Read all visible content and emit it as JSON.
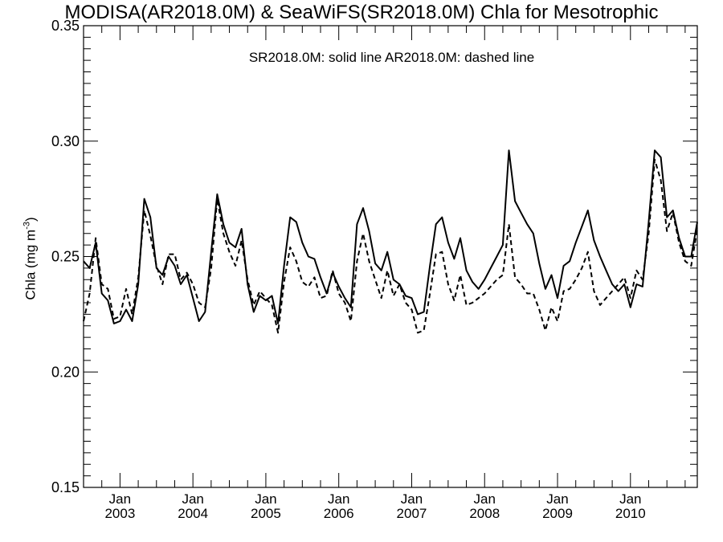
{
  "chart_data": {
    "type": "line",
    "title": "MODISA(AR2018.0M) & SeaWiFS(SR2018.0M)  Chla for Mesotrophic",
    "annotation": "SR2018.0M: solid line   AR2018.0M: dashed line",
    "ylabel": {
      "main": "Chla (mg m",
      "sup": "-3",
      "close": ")"
    },
    "ylim": [
      0.15,
      0.35
    ],
    "yticks": [
      "0.15",
      "0.20",
      "0.25",
      "0.30",
      "0.35"
    ],
    "xlim": [
      "2002-07",
      "2010-12"
    ],
    "xticks": [
      {
        "top": "Jan",
        "bottom": "2003",
        "x": "2003-01"
      },
      {
        "top": "Jan",
        "bottom": "2004",
        "x": "2004-01"
      },
      {
        "top": "Jan",
        "bottom": "2005",
        "x": "2005-01"
      },
      {
        "top": "Jan",
        "bottom": "2006",
        "x": "2006-01"
      },
      {
        "top": "Jan",
        "bottom": "2007",
        "x": "2007-01"
      },
      {
        "top": "Jan",
        "bottom": "2008",
        "x": "2008-01"
      },
      {
        "top": "Jan",
        "bottom": "2009",
        "x": "2009-01"
      },
      {
        "top": "Jan",
        "bottom": "2010",
        "x": "2010-01"
      }
    ],
    "grid": false,
    "series": [
      {
        "name": "SR2018.0M",
        "style": "solid",
        "points": [
          [
            "2002-07",
            0.248
          ],
          [
            "2002-08",
            0.245
          ],
          [
            "2002-09",
            0.256
          ],
          [
            "2002-10",
            0.234
          ],
          [
            "2002-11",
            0.231
          ],
          [
            "2002-12",
            0.221
          ],
          [
            "2003-01",
            0.222
          ],
          [
            "2003-02",
            0.227
          ],
          [
            "2003-03",
            0.222
          ],
          [
            "2003-04",
            0.238
          ],
          [
            "2003-05",
            0.275
          ],
          [
            "2003-06",
            0.267
          ],
          [
            "2003-07",
            0.245
          ],
          [
            "2003-08",
            0.242
          ],
          [
            "2003-09",
            0.25
          ],
          [
            "2003-10",
            0.246
          ],
          [
            "2003-11",
            0.238
          ],
          [
            "2003-12",
            0.242
          ],
          [
            "2004-01",
            0.232
          ],
          [
            "2004-02",
            0.222
          ],
          [
            "2004-03",
            0.226
          ],
          [
            "2004-04",
            0.252
          ],
          [
            "2004-05",
            0.277
          ],
          [
            "2004-06",
            0.264
          ],
          [
            "2004-07",
            0.256
          ],
          [
            "2004-08",
            0.254
          ],
          [
            "2004-09",
            0.262
          ],
          [
            "2004-10",
            0.238
          ],
          [
            "2004-11",
            0.226
          ],
          [
            "2004-12",
            0.233
          ],
          [
            "2005-01",
            0.231
          ],
          [
            "2005-02",
            0.233
          ],
          [
            "2005-03",
            0.221
          ],
          [
            "2005-04",
            0.246
          ],
          [
            "2005-05",
            0.267
          ],
          [
            "2005-06",
            0.265
          ],
          [
            "2005-07",
            0.256
          ],
          [
            "2005-08",
            0.25
          ],
          [
            "2005-09",
            0.249
          ],
          [
            "2005-10",
            0.241
          ],
          [
            "2005-11",
            0.234
          ],
          [
            "2005-12",
            0.243
          ],
          [
            "2006-01",
            0.237
          ],
          [
            "2006-02",
            0.232
          ],
          [
            "2006-03",
            0.228
          ],
          [
            "2006-04",
            0.264
          ],
          [
            "2006-05",
            0.271
          ],
          [
            "2006-06",
            0.261
          ],
          [
            "2006-07",
            0.247
          ],
          [
            "2006-08",
            0.244
          ],
          [
            "2006-09",
            0.252
          ],
          [
            "2006-10",
            0.24
          ],
          [
            "2006-11",
            0.238
          ],
          [
            "2006-12",
            0.233
          ],
          [
            "2007-01",
            0.232
          ],
          [
            "2007-02",
            0.225
          ],
          [
            "2007-03",
            0.226
          ],
          [
            "2007-04",
            0.246
          ],
          [
            "2007-05",
            0.264
          ],
          [
            "2007-06",
            0.267
          ],
          [
            "2007-07",
            0.256
          ],
          [
            "2007-08",
            0.249
          ],
          [
            "2007-09",
            0.258
          ],
          [
            "2007-10",
            0.244
          ],
          [
            "2007-11",
            0.239
          ],
          [
            "2007-12",
            0.236
          ],
          [
            "2008-01",
            0.24
          ],
          [
            "2008-02",
            0.245
          ],
          [
            "2008-03",
            0.25
          ],
          [
            "2008-04",
            0.255
          ],
          [
            "2008-05",
            0.296
          ],
          [
            "2008-06",
            0.274
          ],
          [
            "2008-07",
            0.269
          ],
          [
            "2008-08",
            0.264
          ],
          [
            "2008-09",
            0.26
          ],
          [
            "2008-10",
            0.247
          ],
          [
            "2008-11",
            0.236
          ],
          [
            "2008-12",
            0.242
          ],
          [
            "2009-01",
            0.232
          ],
          [
            "2009-02",
            0.246
          ],
          [
            "2009-03",
            0.248
          ],
          [
            "2009-04",
            0.256
          ],
          [
            "2009-05",
            0.263
          ],
          [
            "2009-06",
            0.27
          ],
          [
            "2009-07",
            0.257
          ],
          [
            "2009-08",
            0.25
          ],
          [
            "2009-09",
            0.244
          ],
          [
            "2009-10",
            0.238
          ],
          [
            "2009-11",
            0.235
          ],
          [
            "2009-12",
            0.238
          ],
          [
            "2010-01",
            0.228
          ],
          [
            "2010-02",
            0.238
          ],
          [
            "2010-03",
            0.237
          ],
          [
            "2010-04",
            0.265
          ],
          [
            "2010-05",
            0.296
          ],
          [
            "2010-06",
            0.293
          ],
          [
            "2010-07",
            0.267
          ],
          [
            "2010-08",
            0.27
          ],
          [
            "2010-09",
            0.258
          ],
          [
            "2010-10",
            0.25
          ],
          [
            "2010-11",
            0.25
          ],
          [
            "2010-12",
            0.265
          ]
        ]
      },
      {
        "name": "AR2018.0M",
        "style": "dashed",
        "points": [
          [
            "2002-07",
            0.222
          ],
          [
            "2002-08",
            0.234
          ],
          [
            "2002-09",
            0.258
          ],
          [
            "2002-10",
            0.238
          ],
          [
            "2002-11",
            0.236
          ],
          [
            "2002-12",
            0.223
          ],
          [
            "2003-01",
            0.224
          ],
          [
            "2003-02",
            0.236
          ],
          [
            "2003-03",
            0.225
          ],
          [
            "2003-04",
            0.241
          ],
          [
            "2003-05",
            0.27
          ],
          [
            "2003-06",
            0.259
          ],
          [
            "2003-07",
            0.246
          ],
          [
            "2003-08",
            0.238
          ],
          [
            "2003-09",
            0.251
          ],
          [
            "2003-10",
            0.251
          ],
          [
            "2003-11",
            0.24
          ],
          [
            "2003-12",
            0.243
          ],
          [
            "2004-01",
            0.238
          ],
          [
            "2004-02",
            0.23
          ],
          [
            "2004-03",
            0.228
          ],
          [
            "2004-04",
            0.245
          ],
          [
            "2004-05",
            0.275
          ],
          [
            "2004-06",
            0.26
          ],
          [
            "2004-07",
            0.252
          ],
          [
            "2004-08",
            0.246
          ],
          [
            "2004-09",
            0.257
          ],
          [
            "2004-10",
            0.24
          ],
          [
            "2004-11",
            0.229
          ],
          [
            "2004-12",
            0.235
          ],
          [
            "2005-01",
            0.232
          ],
          [
            "2005-02",
            0.229
          ],
          [
            "2005-03",
            0.217
          ],
          [
            "2005-04",
            0.239
          ],
          [
            "2005-05",
            0.254
          ],
          [
            "2005-06",
            0.248
          ],
          [
            "2005-07",
            0.239
          ],
          [
            "2005-08",
            0.237
          ],
          [
            "2005-09",
            0.241
          ],
          [
            "2005-10",
            0.232
          ],
          [
            "2005-11",
            0.233
          ],
          [
            "2005-12",
            0.244
          ],
          [
            "2006-01",
            0.234
          ],
          [
            "2006-02",
            0.23
          ],
          [
            "2006-03",
            0.222
          ],
          [
            "2006-04",
            0.248
          ],
          [
            "2006-05",
            0.26
          ],
          [
            "2006-06",
            0.248
          ],
          [
            "2006-07",
            0.24
          ],
          [
            "2006-08",
            0.232
          ],
          [
            "2006-09",
            0.244
          ],
          [
            "2006-10",
            0.233
          ],
          [
            "2006-11",
            0.238
          ],
          [
            "2006-12",
            0.23
          ],
          [
            "2007-01",
            0.227
          ],
          [
            "2007-02",
            0.217
          ],
          [
            "2007-03",
            0.218
          ],
          [
            "2007-04",
            0.234
          ],
          [
            "2007-05",
            0.251
          ],
          [
            "2007-06",
            0.252
          ],
          [
            "2007-07",
            0.238
          ],
          [
            "2007-08",
            0.231
          ],
          [
            "2007-09",
            0.242
          ],
          [
            "2007-10",
            0.229
          ],
          [
            "2007-11",
            0.23
          ],
          [
            "2007-12",
            0.232
          ],
          [
            "2008-01",
            0.234
          ],
          [
            "2008-02",
            0.237
          ],
          [
            "2008-03",
            0.24
          ],
          [
            "2008-04",
            0.242
          ],
          [
            "2008-05",
            0.264
          ],
          [
            "2008-06",
            0.241
          ],
          [
            "2008-07",
            0.238
          ],
          [
            "2008-08",
            0.234
          ],
          [
            "2008-09",
            0.234
          ],
          [
            "2008-10",
            0.227
          ],
          [
            "2008-11",
            0.218
          ],
          [
            "2008-12",
            0.228
          ],
          [
            "2009-01",
            0.222
          ],
          [
            "2009-02",
            0.235
          ],
          [
            "2009-03",
            0.236
          ],
          [
            "2009-04",
            0.24
          ],
          [
            "2009-05",
            0.245
          ],
          [
            "2009-06",
            0.252
          ],
          [
            "2009-07",
            0.235
          ],
          [
            "2009-08",
            0.229
          ],
          [
            "2009-09",
            0.232
          ],
          [
            "2009-10",
            0.235
          ],
          [
            "2009-11",
            0.238
          ],
          [
            "2009-12",
            0.241
          ],
          [
            "2010-01",
            0.232
          ],
          [
            "2010-02",
            0.244
          ],
          [
            "2010-03",
            0.24
          ],
          [
            "2010-04",
            0.26
          ],
          [
            "2010-05",
            0.292
          ],
          [
            "2010-06",
            0.283
          ],
          [
            "2010-07",
            0.261
          ],
          [
            "2010-08",
            0.269
          ],
          [
            "2010-09",
            0.256
          ],
          [
            "2010-10",
            0.248
          ],
          [
            "2010-11",
            0.246
          ],
          [
            "2010-12",
            0.262
          ]
        ]
      }
    ]
  }
}
